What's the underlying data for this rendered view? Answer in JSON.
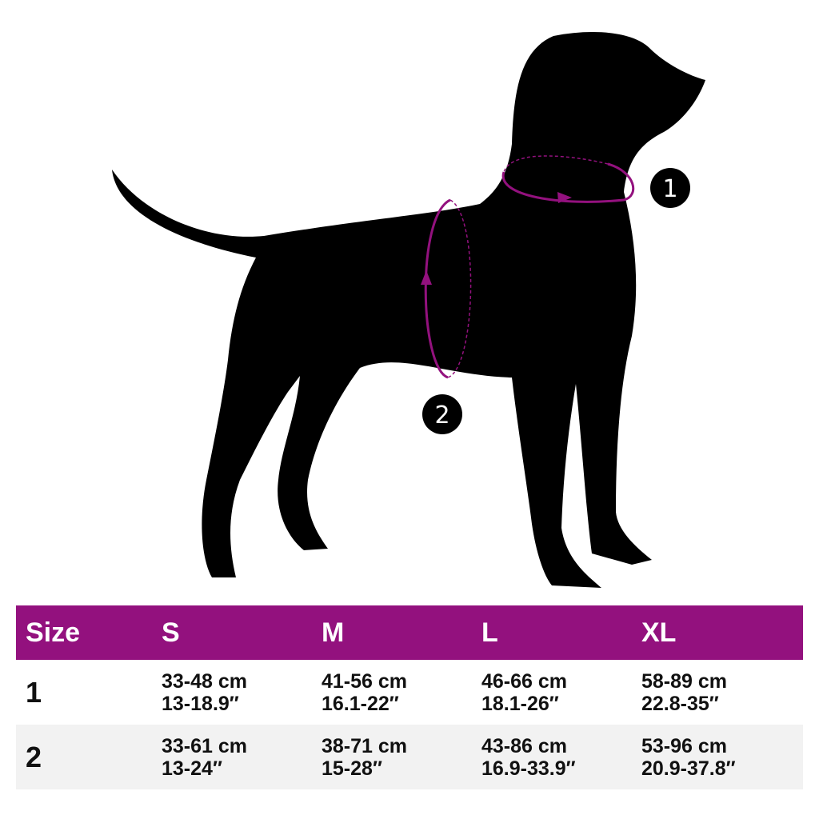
{
  "colors": {
    "accent": "#93117e",
    "silhouette": "#000000",
    "alt_row": "#f2f2f2"
  },
  "diagram": {
    "markers": [
      {
        "label": "1",
        "meaning": "neck"
      },
      {
        "label": "2",
        "meaning": "chest"
      }
    ]
  },
  "table": {
    "headers": [
      "Size",
      "S",
      "M",
      "L",
      "XL"
    ],
    "rows": [
      {
        "label": "1",
        "cells": [
          [
            "33-48 cm",
            "13-18.9″"
          ],
          [
            "41-56 cm",
            "16.1-22″"
          ],
          [
            "46-66 cm",
            "18.1-26″"
          ],
          [
            "58-89 cm",
            "22.8-35″"
          ]
        ]
      },
      {
        "label": "2",
        "cells": [
          [
            "33-61 cm",
            "13-24″"
          ],
          [
            "38-71 cm",
            "15-28″"
          ],
          [
            "43-86 cm",
            "16.9-33.9″"
          ],
          [
            "53-96 cm",
            "20.9-37.8″"
          ]
        ]
      }
    ]
  }
}
